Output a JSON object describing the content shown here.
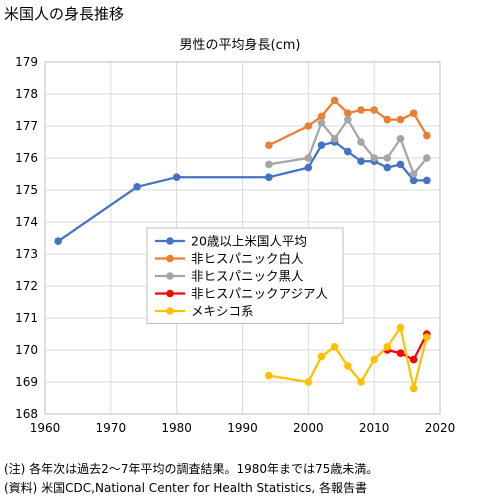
{
  "page_title": "米国人の身長推移",
  "notes": [
    "(注) 各年次は過去2～7年平均の調査結果。1980年までは75歳未満。",
    "(資料) 米国CDC,National Center for Health Statistics, 各報告書"
  ],
  "chart_data": {
    "type": "line",
    "title": "男性の平均身長(cm)",
    "xlabel": "",
    "ylabel": "",
    "xlim": [
      1960,
      2020
    ],
    "ylim": [
      168,
      179
    ],
    "xticks": [
      1960,
      1970,
      1980,
      1990,
      2000,
      2010,
      2020
    ],
    "yticks": [
      168,
      169,
      170,
      171,
      172,
      173,
      174,
      175,
      176,
      177,
      178,
      179
    ],
    "grid": true,
    "legend_position": "center-left",
    "series": [
      {
        "name": "20歳以上米国人平均",
        "color": "#4472c4",
        "x": [
          1962,
          1974,
          1980,
          1994,
          2000,
          2002,
          2004,
          2006,
          2008,
          2010,
          2012,
          2014,
          2016,
          2018
        ],
        "y": [
          173.4,
          175.1,
          175.4,
          175.4,
          175.7,
          176.4,
          176.5,
          176.2,
          175.9,
          175.9,
          175.7,
          175.8,
          175.3,
          175.3
        ]
      },
      {
        "name": "非ヒスパニック白人",
        "color": "#ed7d31",
        "x": [
          1994,
          2000,
          2002,
          2004,
          2006,
          2008,
          2010,
          2012,
          2014,
          2016,
          2018
        ],
        "y": [
          176.4,
          177.0,
          177.3,
          177.8,
          177.4,
          177.5,
          177.5,
          177.2,
          177.2,
          177.4,
          176.7
        ]
      },
      {
        "name": "非ヒスパニック黒人",
        "color": "#a5a5a5",
        "x": [
          1994,
          2000,
          2002,
          2004,
          2006,
          2008,
          2010,
          2012,
          2014,
          2016,
          2018
        ],
        "y": [
          175.8,
          176.0,
          177.1,
          176.6,
          177.2,
          176.5,
          176.0,
          176.0,
          176.6,
          175.5,
          176.0
        ]
      },
      {
        "name": "非ヒスパニックアジア人",
        "color": "#ff0000",
        "x": [
          2012,
          2014,
          2016,
          2018
        ],
        "y": [
          170.0,
          169.9,
          169.7,
          170.5
        ]
      },
      {
        "name": "メキシコ系",
        "color": "#ffc000",
        "x": [
          1994,
          2000,
          2002,
          2004,
          2006,
          2008,
          2010,
          2012,
          2014,
          2016,
          2018
        ],
        "y": [
          169.2,
          169.0,
          169.8,
          170.1,
          169.5,
          169.0,
          169.7,
          170.1,
          170.7,
          168.8,
          170.4
        ]
      }
    ]
  }
}
